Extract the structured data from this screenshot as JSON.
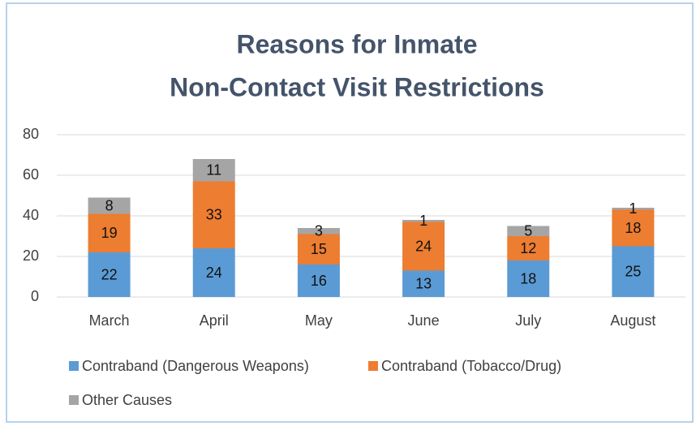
{
  "chart_data": {
    "type": "stacked_bar",
    "title": [
      "Reasons for Inmate",
      "Non-Contact Visit Restrictions"
    ],
    "categories": [
      "March",
      "April",
      "May",
      "June",
      "July",
      "August"
    ],
    "series": [
      {
        "name": "Contraband (Dangerous Weapons)",
        "color": "#5b9bd5",
        "values": [
          22,
          24,
          16,
          13,
          18,
          25
        ]
      },
      {
        "name": "Contraband (Tobacco/Drug)",
        "color": "#ed7d31",
        "values": [
          19,
          33,
          15,
          24,
          12,
          18
        ]
      },
      {
        "name": "Other Causes",
        "color": "#a5a5a5",
        "values": [
          8,
          11,
          3,
          1,
          5,
          1
        ]
      }
    ],
    "ylim": [
      0,
      80
    ],
    "yticks": [
      0,
      20,
      40,
      60,
      80
    ],
    "grid": true,
    "legend": "bottom"
  }
}
